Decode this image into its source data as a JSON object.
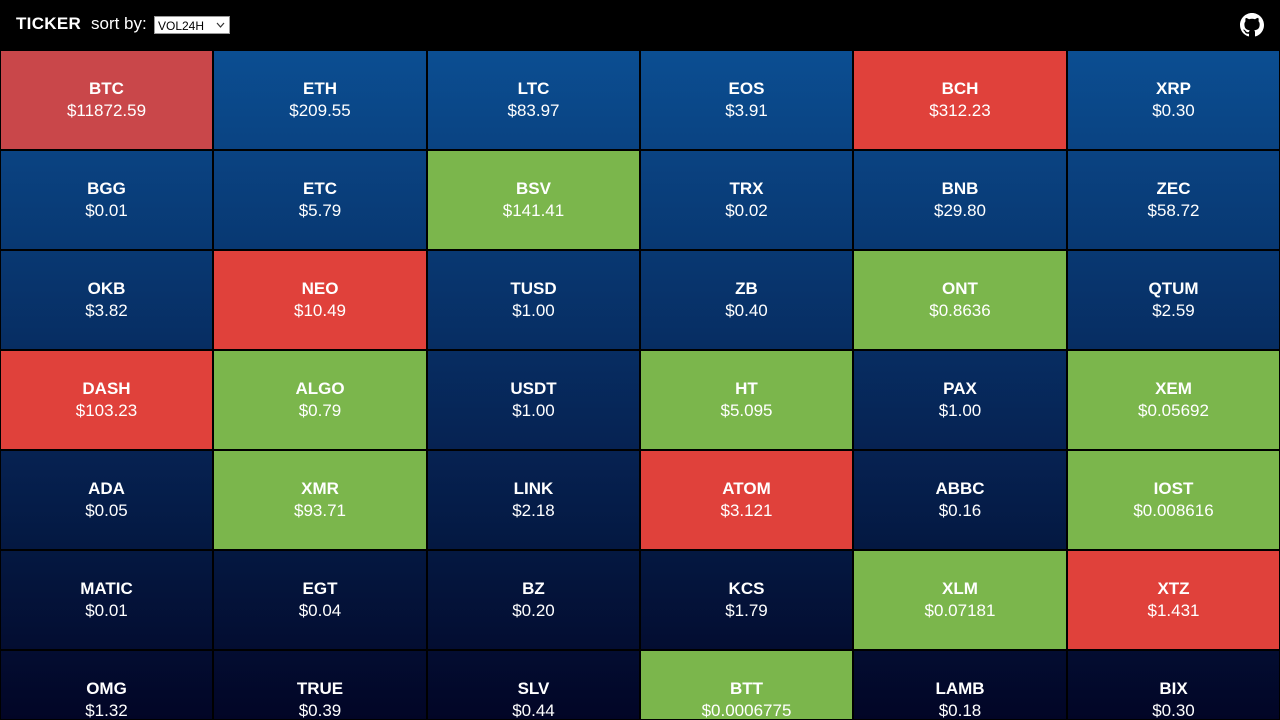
{
  "header": {
    "title": "TICKER",
    "sort_label": "sort by:",
    "sort_value": "VOL24H"
  },
  "tiles": [
    {
      "symbol": "BTC",
      "price": "$11872.59",
      "color": "#c9474a"
    },
    {
      "symbol": "ETH",
      "price": "$209.55"
    },
    {
      "symbol": "LTC",
      "price": "$83.97"
    },
    {
      "symbol": "EOS",
      "price": "$3.91"
    },
    {
      "symbol": "BCH",
      "price": "$312.23",
      "color": "#e0413b"
    },
    {
      "symbol": "XRP",
      "price": "$0.30"
    },
    {
      "symbol": "BGG",
      "price": "$0.01"
    },
    {
      "symbol": "ETC",
      "price": "$5.79"
    },
    {
      "symbol": "BSV",
      "price": "$141.41",
      "color": "#7bb64c"
    },
    {
      "symbol": "TRX",
      "price": "$0.02"
    },
    {
      "symbol": "BNB",
      "price": "$29.80"
    },
    {
      "symbol": "ZEC",
      "price": "$58.72"
    },
    {
      "symbol": "OKB",
      "price": "$3.82"
    },
    {
      "symbol": "NEO",
      "price": "$10.49",
      "color": "#e0413b"
    },
    {
      "symbol": "TUSD",
      "price": "$1.00"
    },
    {
      "symbol": "ZB",
      "price": "$0.40"
    },
    {
      "symbol": "ONT",
      "price": "$0.8636",
      "color": "#7bb64c"
    },
    {
      "symbol": "QTUM",
      "price": "$2.59"
    },
    {
      "symbol": "DASH",
      "price": "$103.23",
      "color": "#e0413b"
    },
    {
      "symbol": "ALGO",
      "price": "$0.79",
      "color": "#7bb64c"
    },
    {
      "symbol": "USDT",
      "price": "$1.00"
    },
    {
      "symbol": "HT",
      "price": "$5.095",
      "color": "#7bb64c"
    },
    {
      "symbol": "PAX",
      "price": "$1.00"
    },
    {
      "symbol": "XEM",
      "price": "$0.05692",
      "color": "#7bb64c"
    },
    {
      "symbol": "ADA",
      "price": "$0.05"
    },
    {
      "symbol": "XMR",
      "price": "$93.71",
      "color": "#7bb64c"
    },
    {
      "symbol": "LINK",
      "price": "$2.18"
    },
    {
      "symbol": "ATOM",
      "price": "$3.121",
      "color": "#e0413b"
    },
    {
      "symbol": "ABBC",
      "price": "$0.16"
    },
    {
      "symbol": "IOST",
      "price": "$0.008616",
      "color": "#7bb64c"
    },
    {
      "symbol": "MATIC",
      "price": "$0.01"
    },
    {
      "symbol": "EGT",
      "price": "$0.04"
    },
    {
      "symbol": "BZ",
      "price": "$0.20"
    },
    {
      "symbol": "KCS",
      "price": "$1.79"
    },
    {
      "symbol": "XLM",
      "price": "$0.07181",
      "color": "#7bb64c"
    },
    {
      "symbol": "XTZ",
      "price": "$1.431",
      "color": "#e0413b"
    },
    {
      "symbol": "OMG",
      "price": "$1.32"
    },
    {
      "symbol": "TRUE",
      "price": "$0.39"
    },
    {
      "symbol": "SLV",
      "price": "$0.44"
    },
    {
      "symbol": "BTT",
      "price": "$0.0006775",
      "color": "#7bb64c"
    },
    {
      "symbol": "LAMB",
      "price": "$0.18"
    },
    {
      "symbol": "BIX",
      "price": "$0.30"
    }
  ]
}
